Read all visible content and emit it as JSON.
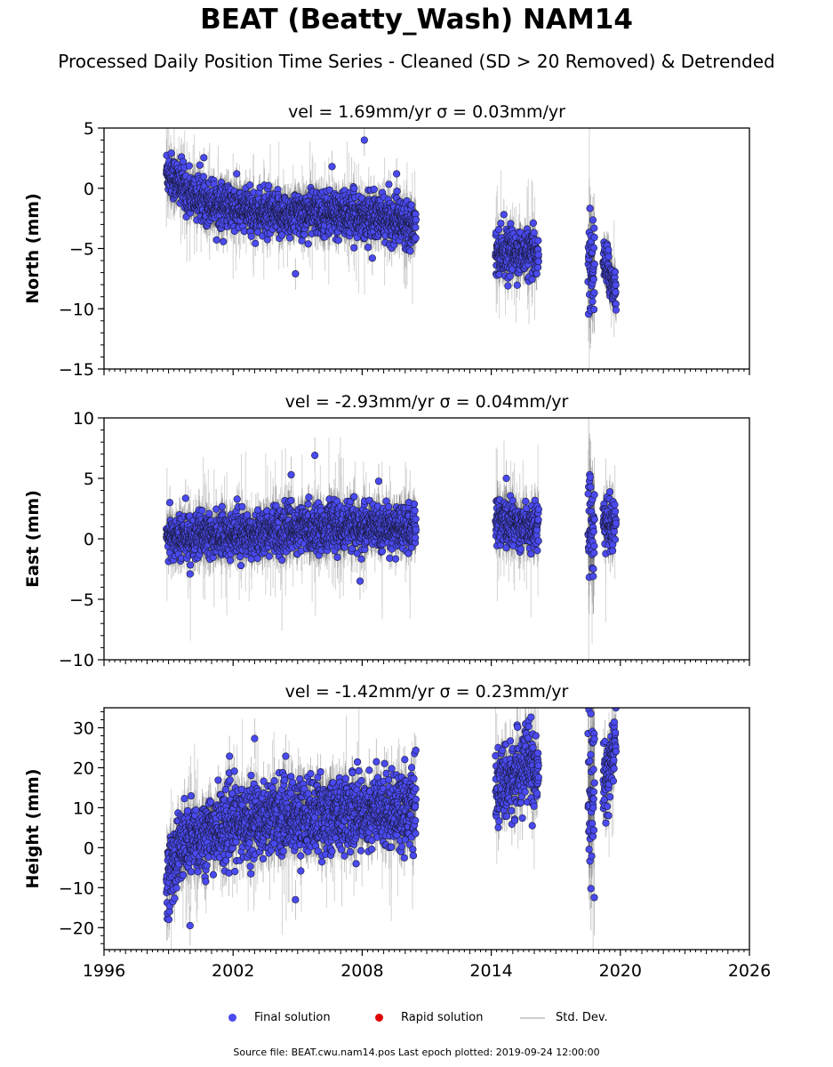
{
  "title": "BEAT (Beatty_Wash) NAM14",
  "subtitle": "Processed Daily Position Time Series - Cleaned (SD > 20 Removed) & Detrended",
  "legend": {
    "final": "Final solution",
    "rapid": "Rapid solution",
    "std": "Std. Dev."
  },
  "source": "Source file: BEAT.cwu.nam14.pos  Last epoch plotted: 2019-09-24 12:00:00",
  "colors": {
    "final": "#4a4af0",
    "rapid": "#e00000",
    "std": "#cfcfcf",
    "dense": "#555555"
  },
  "chart_data": [
    {
      "type": "scatter",
      "title": "vel = 1.69mm/yr   σ = 0.03mm/yr",
      "ylabel": "North (mm)",
      "xlim": [
        1996,
        2026
      ],
      "ylim": [
        -15,
        5
      ],
      "yticks": [
        -15,
        -10,
        -5,
        0,
        5
      ],
      "xticks": [
        "1996",
        "2002",
        "2008",
        "2014",
        "2020",
        "2026"
      ],
      "series": [
        {
          "name": "Final solution",
          "segments": [
            {
              "x": [
                1998.9,
                2000.0,
                2002.0,
                2004.0,
                2006.0,
                2008.0,
                2010.5
              ],
              "y": [
                1.5,
                -0.5,
                -1.7,
                -2.3,
                -2.0,
                -2.3,
                -2.9
              ]
            },
            {
              "x": [
                2014.2,
                2015.0,
                2016.2
              ],
              "y": [
                -5.2,
                -5.3,
                -5.5
              ]
            },
            {
              "x": [
                2018.5,
                2018.8
              ],
              "y": [
                -6.0,
                -6.8
              ]
            },
            {
              "x": [
                2019.2,
                2019.8
              ],
              "y": [
                -5.8,
                -8.5
              ]
            }
          ]
        }
      ],
      "outliers": [
        {
          "x": 2008.1,
          "y": 4.0
        },
        {
          "x": 2004.9,
          "y": -7.1
        },
        {
          "x": 2009.6,
          "y": 1.2
        },
        {
          "x": 2006.6,
          "y": 1.8
        }
      ]
    },
    {
      "type": "scatter",
      "title": "vel = -2.93mm/yr   σ = 0.04mm/yr",
      "ylabel": "East (mm)",
      "xlim": [
        1996,
        2026
      ],
      "ylim": [
        -10,
        10
      ],
      "yticks": [
        -10,
        -5,
        0,
        5,
        10
      ],
      "xticks": [
        "1996",
        "2002",
        "2008",
        "2014",
        "2020",
        "2026"
      ],
      "series": [
        {
          "name": "Final solution",
          "segments": [
            {
              "x": [
                1998.9,
                2001.0,
                2003.0,
                2005.0,
                2007.0,
                2009.0,
                2010.5
              ],
              "y": [
                0.0,
                0.3,
                0.5,
                0.8,
                1.0,
                0.9,
                0.8
              ]
            },
            {
              "x": [
                2014.2,
                2015.0,
                2016.2
              ],
              "y": [
                1.5,
                1.2,
                1.0
              ]
            },
            {
              "x": [
                2018.5,
                2018.8
              ],
              "y": [
                1.5,
                1.3
              ]
            },
            {
              "x": [
                2019.2,
                2019.8
              ],
              "y": [
                1.2,
                1.3
              ]
            }
          ]
        }
      ],
      "outliers": [
        {
          "x": 2005.8,
          "y": 6.9
        },
        {
          "x": 2004.7,
          "y": 5.3
        },
        {
          "x": 2007.9,
          "y": -3.5
        },
        {
          "x": 2014.7,
          "y": 5.0
        },
        {
          "x": 2018.6,
          "y": 5.1
        }
      ]
    },
    {
      "type": "scatter",
      "title": "vel = -1.42mm/yr   σ = 0.23mm/yr",
      "ylabel": "Height (mm)",
      "xlim": [
        1996,
        2026
      ],
      "ylim": [
        -25.5,
        35
      ],
      "yticks": [
        -20,
        -10,
        0,
        10,
        20,
        30
      ],
      "xticks": [
        "1996",
        "2002",
        "2008",
        "2014",
        "2020",
        "2026"
      ],
      "series": [
        {
          "name": "Final solution",
          "segments": [
            {
              "x": [
                1998.9,
                1999.5,
                2000.5,
                2002.0,
                2004.0,
                2006.0,
                2008.0,
                2010.5
              ],
              "y": [
                -8,
                0,
                3,
                6,
                8,
                8,
                9,
                10
              ]
            },
            {
              "x": [
                2014.2,
                2015.0,
                2015.7,
                2016.2
              ],
              "y": [
                14,
                17,
                22,
                15
              ]
            },
            {
              "x": [
                2018.5,
                2018.8
              ],
              "y": [
                15,
                14
              ]
            },
            {
              "x": [
                2019.2,
                2019.8
              ],
              "y": [
                15,
                26
              ]
            }
          ]
        }
      ],
      "outliers": [
        {
          "x": 2003.0,
          "y": 27.3
        },
        {
          "x": 2000.0,
          "y": -19.5
        },
        {
          "x": 2004.9,
          "y": -13.0
        }
      ]
    }
  ]
}
